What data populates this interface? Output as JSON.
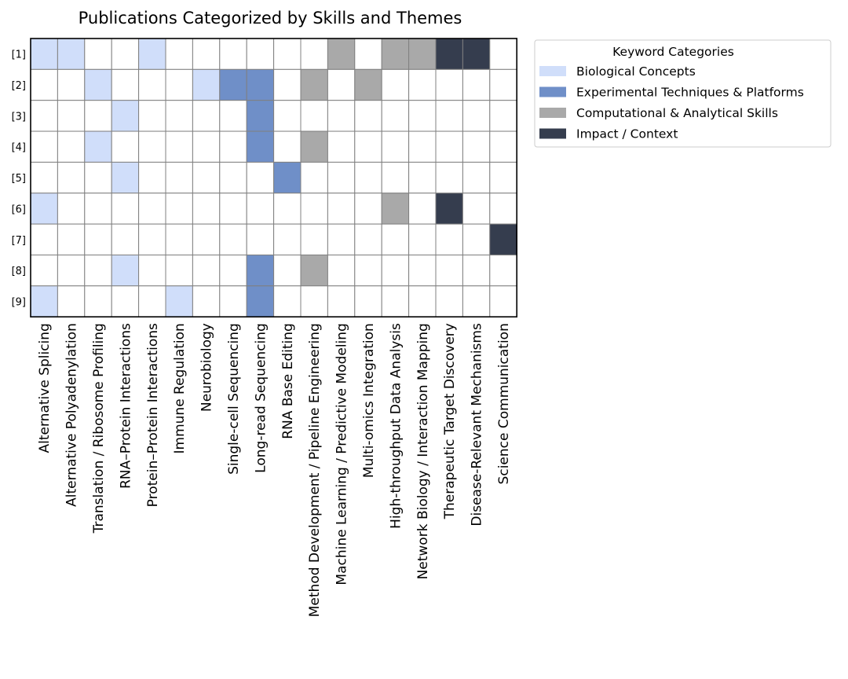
{
  "chart_data": {
    "type": "heatmap",
    "title": "Publications Categorized by Skills and Themes",
    "xlabel": "",
    "ylabel": "",
    "rows": [
      "[1]",
      "[2]",
      "[3]",
      "[4]",
      "[5]",
      "[6]",
      "[7]",
      "[8]",
      "[9]"
    ],
    "columns": [
      "Alternative Splicing",
      "Alternative Polyadenylation",
      "Translation / Ribosome Profiling",
      "RNA–Protein Interactions",
      "Protein–Protein Interactions",
      "Immune Regulation",
      "Neurobiology",
      "Single-cell Sequencing",
      "Long-read Sequencing",
      "RNA Base Editing",
      "Method Development / Pipeline Engineering",
      "Machine Learning / Predictive Modeling",
      "Multi-omics Integration",
      "High-throughput Data Analysis",
      "Network Biology / Interaction Mapping",
      "Therapeutic Target Discovery",
      "Disease-Relevant Mechanisms",
      "Science Communication"
    ],
    "categories": [
      {
        "key": "bio",
        "name": "Biological Concepts",
        "color": "#d0defa"
      },
      {
        "key": "exp",
        "name": "Experimental Techniques & Platforms",
        "color": "#6f8fc8"
      },
      {
        "key": "comp",
        "name": "Computational & Analytical Skills",
        "color": "#a9a9a9"
      },
      {
        "key": "impact",
        "name": "Impact / Context",
        "color": "#353d4e"
      }
    ],
    "column_category": [
      "bio",
      "bio",
      "bio",
      "bio",
      "bio",
      "bio",
      "bio",
      "exp",
      "exp",
      "exp",
      "comp",
      "comp",
      "comp",
      "comp",
      "comp",
      "impact",
      "impact",
      "impact"
    ],
    "matrix": [
      [
        1,
        1,
        0,
        0,
        1,
        0,
        0,
        0,
        0,
        0,
        0,
        1,
        0,
        1,
        1,
        1,
        1,
        0
      ],
      [
        0,
        0,
        1,
        0,
        0,
        0,
        1,
        1,
        1,
        0,
        1,
        0,
        1,
        0,
        0,
        0,
        0,
        0
      ],
      [
        0,
        0,
        0,
        1,
        0,
        0,
        0,
        0,
        1,
        0,
        0,
        0,
        0,
        0,
        0,
        0,
        0,
        0
      ],
      [
        0,
        0,
        1,
        0,
        0,
        0,
        0,
        0,
        1,
        0,
        1,
        0,
        0,
        0,
        0,
        0,
        0,
        0
      ],
      [
        0,
        0,
        0,
        1,
        0,
        0,
        0,
        0,
        0,
        1,
        0,
        0,
        0,
        0,
        0,
        0,
        0,
        0
      ],
      [
        1,
        0,
        0,
        0,
        0,
        0,
        0,
        0,
        0,
        0,
        0,
        0,
        0,
        1,
        0,
        1,
        0,
        0
      ],
      [
        0,
        0,
        0,
        0,
        0,
        0,
        0,
        0,
        0,
        0,
        0,
        0,
        0,
        0,
        0,
        0,
        0,
        1
      ],
      [
        0,
        0,
        0,
        1,
        0,
        0,
        0,
        0,
        1,
        0,
        1,
        0,
        0,
        0,
        0,
        0,
        0,
        0
      ],
      [
        1,
        0,
        0,
        0,
        0,
        1,
        0,
        0,
        1,
        0,
        0,
        0,
        0,
        0,
        0,
        0,
        0,
        0
      ]
    ],
    "legend": {
      "title": "Keyword Categories",
      "placement": "outside-top-right"
    },
    "grid": true,
    "cell_border_color": "#808080",
    "empty_color": "#ffffff"
  }
}
